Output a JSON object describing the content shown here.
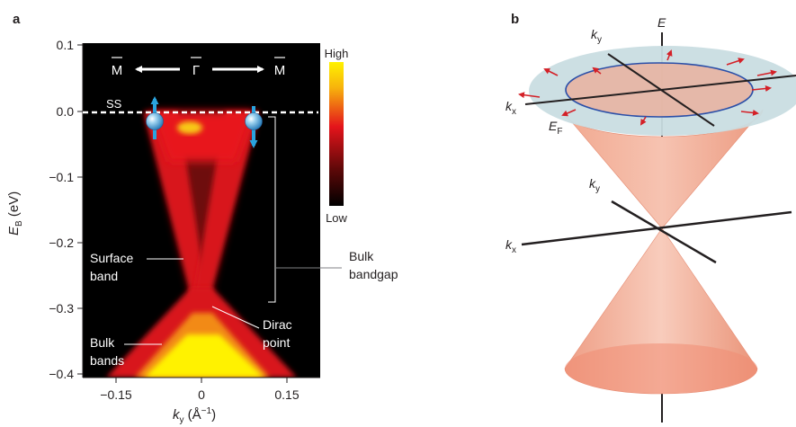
{
  "panel_a": {
    "letter": "a",
    "y_axis": {
      "label_main": "E",
      "label_sub": "B",
      "label_unit": " (eV)",
      "ticks": [
        "0.1",
        "0.0",
        "−0.1",
        "−0.2",
        "−0.3",
        "−0.4"
      ]
    },
    "x_axis": {
      "label_main": "k",
      "label_sub": "y",
      "label_unit_open": " (Å",
      "label_unit_sup": "−1",
      "label_unit_close": ")",
      "ticks": [
        "−0.15",
        "0",
        "0.15"
      ]
    },
    "colorbar": {
      "high": "High",
      "low": "Low"
    },
    "direction": {
      "left": "M",
      "center": "Γ",
      "right": "M"
    },
    "annotations": {
      "ss": "SS",
      "surface_band_1": "Surface",
      "surface_band_2": "band",
      "bulk_bandgap_1": "Bulk",
      "bulk_bandgap_2": "bandgap",
      "dirac_1": "Dirac",
      "dirac_2": "point",
      "bulk_bands_1": "Bulk",
      "bulk_bands_2": "bands"
    },
    "colors": {
      "background": "#000000",
      "band": "#e8141c",
      "high": "#fff200",
      "spin_arrow": "#2aa3de"
    }
  },
  "panel_b": {
    "letter": "b",
    "labels": {
      "e_axis": "E",
      "ky_top_main": "k",
      "ky_top_sub": "y",
      "kx_top_main": "k",
      "kx_top_sub": "x",
      "ef_main": "E",
      "ef_sub": "F",
      "ky_mid_main": "k",
      "ky_mid_sub": "y",
      "kx_mid_main": "k",
      "kx_mid_sub": "x"
    },
    "colors": {
      "cone": "#f0a088",
      "plane": "#c9dde2",
      "fermi_ring": "#2b4fa8",
      "spin_arrow": "#d42027"
    }
  }
}
